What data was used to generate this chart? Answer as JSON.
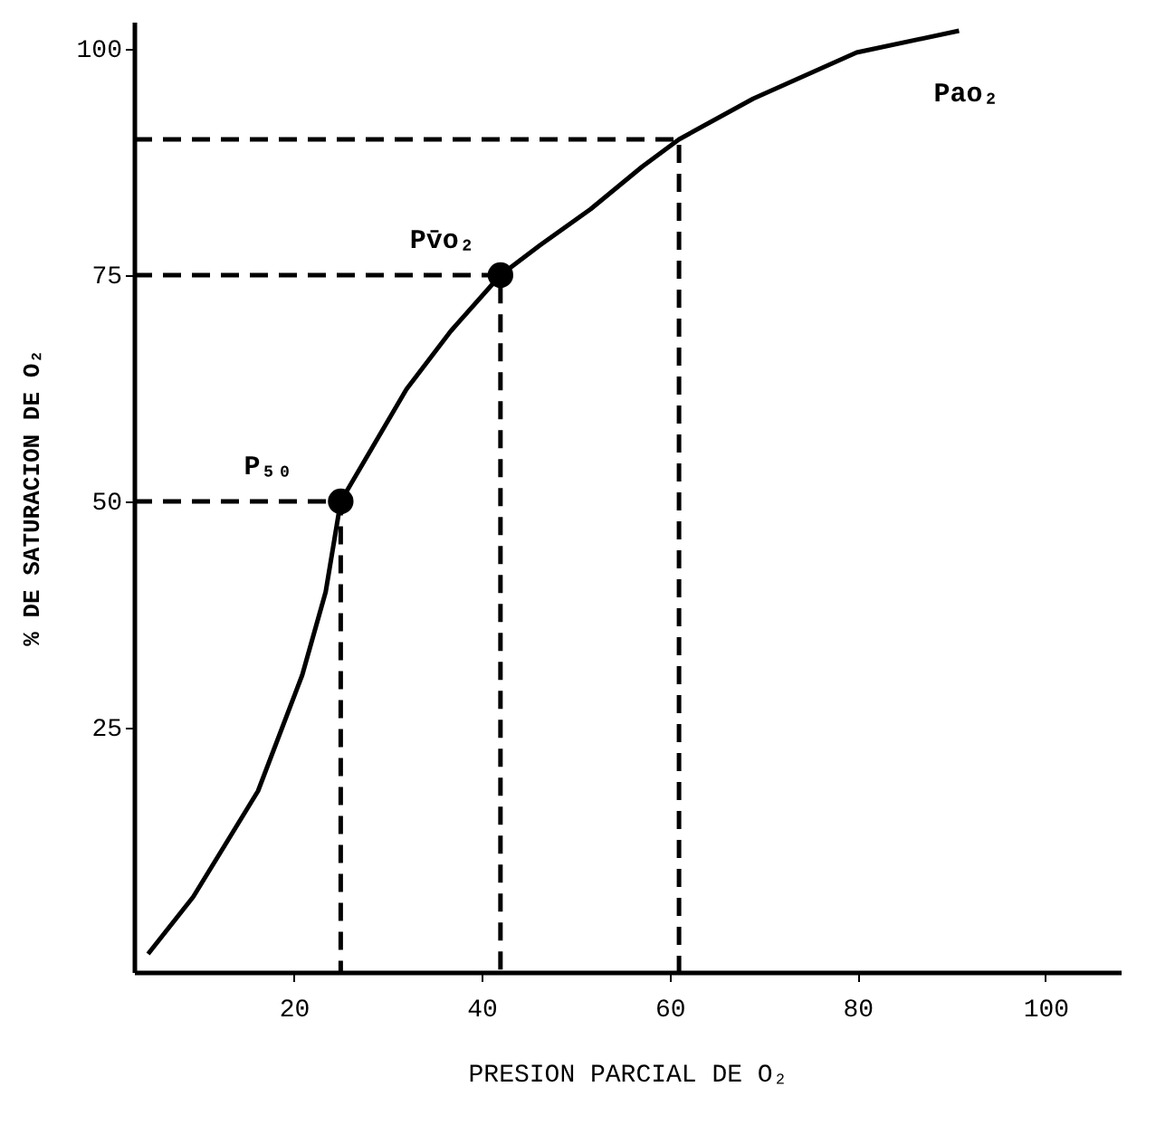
{
  "chart_data": {
    "type": "line",
    "xlabel": "PRESION PARCIAL DE O₂",
    "ylabel": "% DE SATURACION DE O₂",
    "xlim": [
      3,
      108
    ],
    "xticks": [
      20,
      40,
      60,
      80,
      100
    ],
    "ylim": [
      -2,
      103
    ],
    "yticks": [
      25,
      50,
      75,
      100
    ],
    "grid": false,
    "series": [
      {
        "color": "#000000",
        "line_style": "solid",
        "x": [
          4.5,
          9.3,
          16.2,
          20.9,
          23.4,
          25,
          32,
          36.7,
          42,
          46.2,
          51.6,
          57.1,
          61,
          68.9,
          79.9,
          90.8
        ],
        "values": [
          0,
          6.3,
          18,
          30.8,
          40,
          50,
          62.4,
          68.8,
          75,
          78.3,
          82.3,
          87,
          90,
          94.5,
          99.6,
          102
        ]
      },
      {
        "color": "#000000",
        "line_style": "dashed",
        "x": [
          3,
          25,
          25
        ],
        "values": [
          50,
          50,
          -2
        ]
      },
      {
        "color": "#000000",
        "line_style": "dashed",
        "x": [
          3,
          42,
          42
        ],
        "values": [
          75,
          75,
          -2
        ]
      },
      {
        "color": "#000000",
        "line_style": "dashed",
        "x": [
          3,
          61,
          61
        ],
        "values": [
          90,
          90,
          -2
        ]
      },
      {
        "type": "scatter",
        "color": "#000000",
        "marker": "circle",
        "x": [
          25,
          42
        ],
        "values": [
          50,
          75
        ]
      }
    ],
    "annotations": [
      {
        "text": "P₅₀",
        "x": 25,
        "y": 50
      },
      {
        "text": "Pv̄o₂",
        "x": 42,
        "y": 75
      },
      {
        "text": "Pao₂",
        "x": 90.8,
        "y": 102
      }
    ]
  }
}
